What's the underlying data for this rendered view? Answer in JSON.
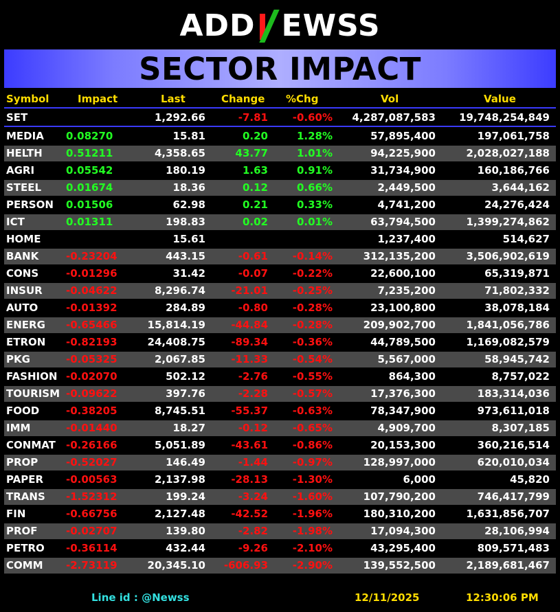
{
  "logo": {
    "prefix": "ADD",
    "suffix": "EWSS"
  },
  "banner_title": "SECTOR IMPACT",
  "headers": {
    "symbol": "Symbol",
    "impact": "Impact",
    "last": "Last",
    "change": "Change",
    "pct": "%Chg",
    "vol": "Vol",
    "value": "Value"
  },
  "index_row": {
    "symbol": "SET",
    "impact": "",
    "last": "1,292.66",
    "change": "-7.81",
    "pct": "-0.60%",
    "vol": "4,287,087,583",
    "value": "19,748,254,849"
  },
  "rows": [
    {
      "symbol": "MEDIA",
      "impact": "0.08270",
      "last": "15.81",
      "change": "0.20",
      "pct": "1.28%",
      "vol": "57,895,400",
      "value": "197,061,758",
      "trend": "pos"
    },
    {
      "symbol": "HELTH",
      "impact": "0.51211",
      "last": "4,358.65",
      "change": "43.77",
      "pct": "1.01%",
      "vol": "94,225,900",
      "value": "2,028,027,188",
      "trend": "pos"
    },
    {
      "symbol": "AGRI",
      "impact": "0.05542",
      "last": "180.19",
      "change": "1.63",
      "pct": "0.91%",
      "vol": "31,734,900",
      "value": "160,186,766",
      "trend": "pos"
    },
    {
      "symbol": "STEEL",
      "impact": "0.01674",
      "last": "18.36",
      "change": "0.12",
      "pct": "0.66%",
      "vol": "2,449,500",
      "value": "3,644,162",
      "trend": "pos"
    },
    {
      "symbol": "PERSON",
      "impact": "0.01506",
      "last": "62.98",
      "change": "0.21",
      "pct": "0.33%",
      "vol": "4,741,200",
      "value": "24,276,424",
      "trend": "pos"
    },
    {
      "symbol": "ICT",
      "impact": "0.01311",
      "last": "198.83",
      "change": "0.02",
      "pct": "0.01%",
      "vol": "63,794,500",
      "value": "1,399,274,862",
      "trend": "pos"
    },
    {
      "symbol": "HOME",
      "impact": "",
      "last": "15.61",
      "change": "",
      "pct": "",
      "vol": "1,237,400",
      "value": "514,627",
      "trend": "flat"
    },
    {
      "symbol": "BANK",
      "impact": "-0.23204",
      "last": "443.15",
      "change": "-0.61",
      "pct": "-0.14%",
      "vol": "312,135,200",
      "value": "3,506,902,619",
      "trend": "neg"
    },
    {
      "symbol": "CONS",
      "impact": "-0.01296",
      "last": "31.42",
      "change": "-0.07",
      "pct": "-0.22%",
      "vol": "22,600,100",
      "value": "65,319,871",
      "trend": "neg"
    },
    {
      "symbol": "INSUR",
      "impact": "-0.04622",
      "last": "8,296.74",
      "change": "-21.01",
      "pct": "-0.25%",
      "vol": "7,235,200",
      "value": "71,802,332",
      "trend": "neg"
    },
    {
      "symbol": "AUTO",
      "impact": "-0.01392",
      "last": "284.89",
      "change": "-0.80",
      "pct": "-0.28%",
      "vol": "23,100,800",
      "value": "38,078,184",
      "trend": "neg"
    },
    {
      "symbol": "ENERG",
      "impact": "-0.65466",
      "last": "15,814.19",
      "change": "-44.84",
      "pct": "-0.28%",
      "vol": "209,902,700",
      "value": "1,841,056,786",
      "trend": "neg"
    },
    {
      "symbol": "ETRON",
      "impact": "-0.82193",
      "last": "24,408.75",
      "change": "-89.34",
      "pct": "-0.36%",
      "vol": "44,789,500",
      "value": "1,169,082,579",
      "trend": "neg"
    },
    {
      "symbol": "PKG",
      "impact": "-0.05325",
      "last": "2,067.85",
      "change": "-11.33",
      "pct": "-0.54%",
      "vol": "5,567,000",
      "value": "58,945,742",
      "trend": "neg"
    },
    {
      "symbol": "FASHION",
      "impact": "-0.02070",
      "last": "502.12",
      "change": "-2.76",
      "pct": "-0.55%",
      "vol": "864,300",
      "value": "8,757,022",
      "trend": "neg"
    },
    {
      "symbol": "TOURISM",
      "impact": "-0.09622",
      "last": "397.76",
      "change": "-2.28",
      "pct": "-0.57%",
      "vol": "17,376,300",
      "value": "183,314,036",
      "trend": "neg"
    },
    {
      "symbol": "FOOD",
      "impact": "-0.38205",
      "last": "8,745.51",
      "change": "-55.37",
      "pct": "-0.63%",
      "vol": "78,347,900",
      "value": "973,611,018",
      "trend": "neg"
    },
    {
      "symbol": "IMM",
      "impact": "-0.01440",
      "last": "18.27",
      "change": "-0.12",
      "pct": "-0.65%",
      "vol": "4,909,700",
      "value": "8,307,185",
      "trend": "neg"
    },
    {
      "symbol": "CONMAT",
      "impact": "-0.26166",
      "last": "5,051.89",
      "change": "-43.61",
      "pct": "-0.86%",
      "vol": "20,153,300",
      "value": "360,216,514",
      "trend": "neg"
    },
    {
      "symbol": "PROP",
      "impact": "-0.52027",
      "last": "146.49",
      "change": "-1.44",
      "pct": "-0.97%",
      "vol": "128,997,000",
      "value": "620,010,034",
      "trend": "neg"
    },
    {
      "symbol": "PAPER",
      "impact": "-0.00563",
      "last": "2,137.98",
      "change": "-28.13",
      "pct": "-1.30%",
      "vol": "6,000",
      "value": "45,820",
      "trend": "neg"
    },
    {
      "symbol": "TRANS",
      "impact": "-1.52312",
      "last": "199.24",
      "change": "-3.24",
      "pct": "-1.60%",
      "vol": "107,790,200",
      "value": "746,417,799",
      "trend": "neg"
    },
    {
      "symbol": "FIN",
      "impact": "-0.66756",
      "last": "2,127.48",
      "change": "-42.52",
      "pct": "-1.96%",
      "vol": "180,310,200",
      "value": "1,631,856,707",
      "trend": "neg"
    },
    {
      "symbol": "PROF",
      "impact": "-0.02707",
      "last": "139.80",
      "change": "-2.82",
      "pct": "-1.98%",
      "vol": "17,094,300",
      "value": "28,106,994",
      "trend": "neg"
    },
    {
      "symbol": "PETRO",
      "impact": "-0.36114",
      "last": "432.44",
      "change": "-9.26",
      "pct": "-2.10%",
      "vol": "43,295,400",
      "value": "809,571,483",
      "trend": "neg"
    },
    {
      "symbol": "COMM",
      "impact": "-2.73119",
      "last": "20,345.10",
      "change": "-606.93",
      "pct": "-2.90%",
      "vol": "139,552,500",
      "value": "2,189,681,467",
      "trend": "neg"
    }
  ],
  "footer": {
    "line_id": "Line id  : @Newss",
    "date": "12/11/2025",
    "time": "12:30:06 PM"
  },
  "colors": {
    "positive": "#22ff22",
    "negative": "#ff1010",
    "header": "#ffdd00",
    "alt_row": "#4a4a4a",
    "footer_line": "#33e0e0"
  }
}
